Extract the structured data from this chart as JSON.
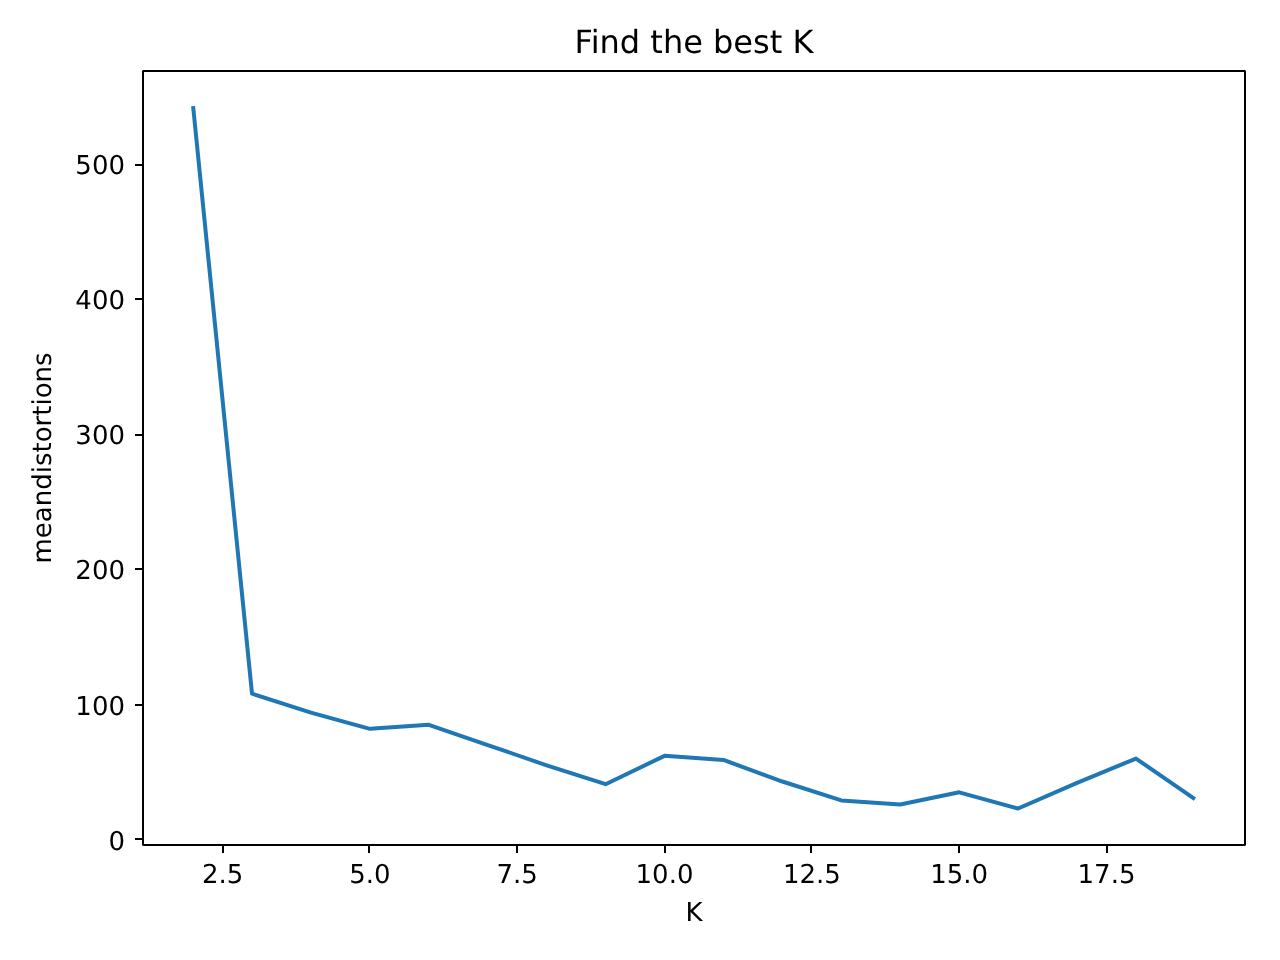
{
  "chart_data": {
    "type": "line",
    "title": "Find the best K",
    "xlabel": "K",
    "ylabel": "meandistortions",
    "x": [
      2,
      3,
      4,
      5,
      6,
      7,
      8,
      9,
      10,
      11,
      12,
      13,
      14,
      15,
      16,
      17,
      18,
      19
    ],
    "series": [
      {
        "color": "#1f77b4",
        "values": [
          543,
          108,
          94,
          82,
          85,
          70,
          55,
          41,
          62,
          59,
          43,
          29,
          26,
          35,
          23,
          42,
          60,
          30
        ]
      }
    ],
    "xlim": [
      1.15,
      19.85
    ],
    "ylim": [
      -4,
      569
    ],
    "xticks": [
      2.5,
      {
        "value": 5,
        "label": "5.0"
      },
      7.5,
      {
        "value": 10,
        "label": "10.0"
      },
      12.5,
      {
        "value": 15,
        "label": "15.0"
      },
      17.5
    ],
    "yticks": [
      0,
      100,
      200,
      300,
      400,
      500
    ],
    "grid": false,
    "line_style": "solid"
  }
}
